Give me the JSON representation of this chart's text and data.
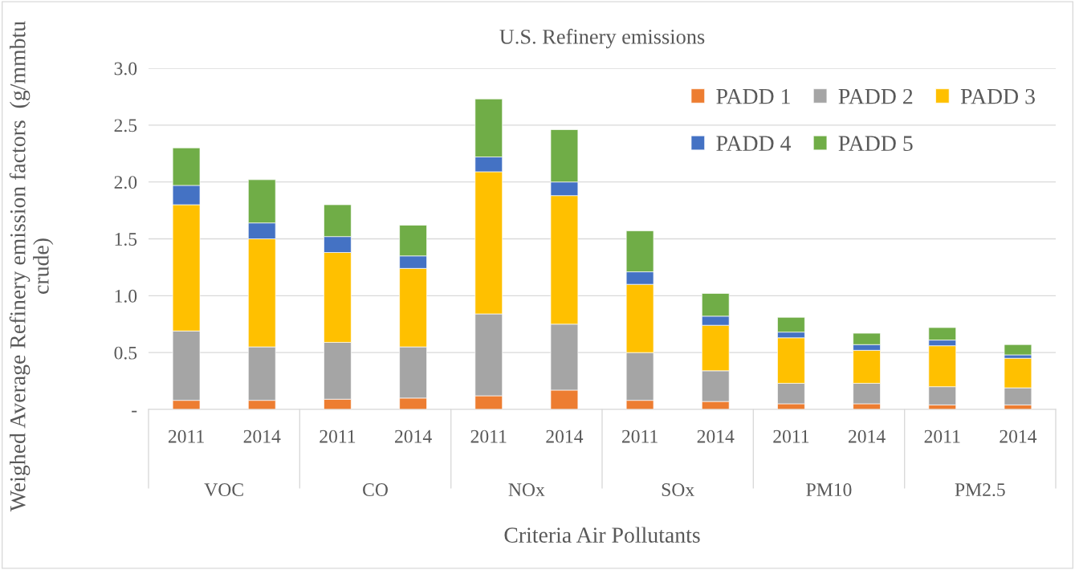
{
  "chart_data": {
    "type": "bar",
    "title": "U.S. Refinery emissions",
    "xlabel": "Criteria Air Pollutants",
    "ylabel": "Weighed Average Refinery emission factors  (g/mmbtu crude)",
    "categories": [
      "2011",
      "2014",
      "2011",
      "2014",
      "2011",
      "2014",
      "2011",
      "2014",
      "2011",
      "2014",
      "2011",
      "2014"
    ],
    "annotations": [
      "VOC",
      "CO",
      "NOx",
      "SOx",
      "PM10",
      "PM2.5"
    ],
    "stacked": true,
    "series": [
      {
        "name": "PADD 1",
        "color": "#ed7d31",
        "values": [
          0.08,
          0.08,
          0.09,
          0.1,
          0.12,
          0.17,
          0.08,
          0.07,
          0.05,
          0.05,
          0.04,
          0.04
        ]
      },
      {
        "name": "PADD 2",
        "color": "#a5a5a5",
        "values": [
          0.61,
          0.47,
          0.5,
          0.45,
          0.72,
          0.58,
          0.42,
          0.27,
          0.18,
          0.18,
          0.16,
          0.15
        ]
      },
      {
        "name": "PADD 3",
        "color": "#ffc000",
        "values": [
          1.11,
          0.95,
          0.79,
          0.69,
          1.25,
          1.13,
          0.6,
          0.4,
          0.4,
          0.29,
          0.36,
          0.26
        ]
      },
      {
        "name": "PADD 4",
        "color": "#4472c4",
        "values": [
          0.17,
          0.14,
          0.14,
          0.11,
          0.13,
          0.12,
          0.11,
          0.08,
          0.05,
          0.05,
          0.05,
          0.03
        ]
      },
      {
        "name": "PADD 5",
        "color": "#70ad47",
        "values": [
          0.33,
          0.38,
          0.28,
          0.27,
          0.51,
          0.46,
          0.36,
          0.2,
          0.13,
          0.1,
          0.11,
          0.09
        ]
      }
    ],
    "ylim": [
      0,
      3.0
    ],
    "yticks": [
      {
        "value": 0,
        "label": "-"
      },
      0.5,
      {
        "value": 1,
        "label": "1.0"
      },
      1.5,
      {
        "value": 2,
        "label": "2.0"
      },
      2.5,
      {
        "value": 3,
        "label": "3.0"
      }
    ],
    "grid": "y",
    "legend": "top right"
  }
}
